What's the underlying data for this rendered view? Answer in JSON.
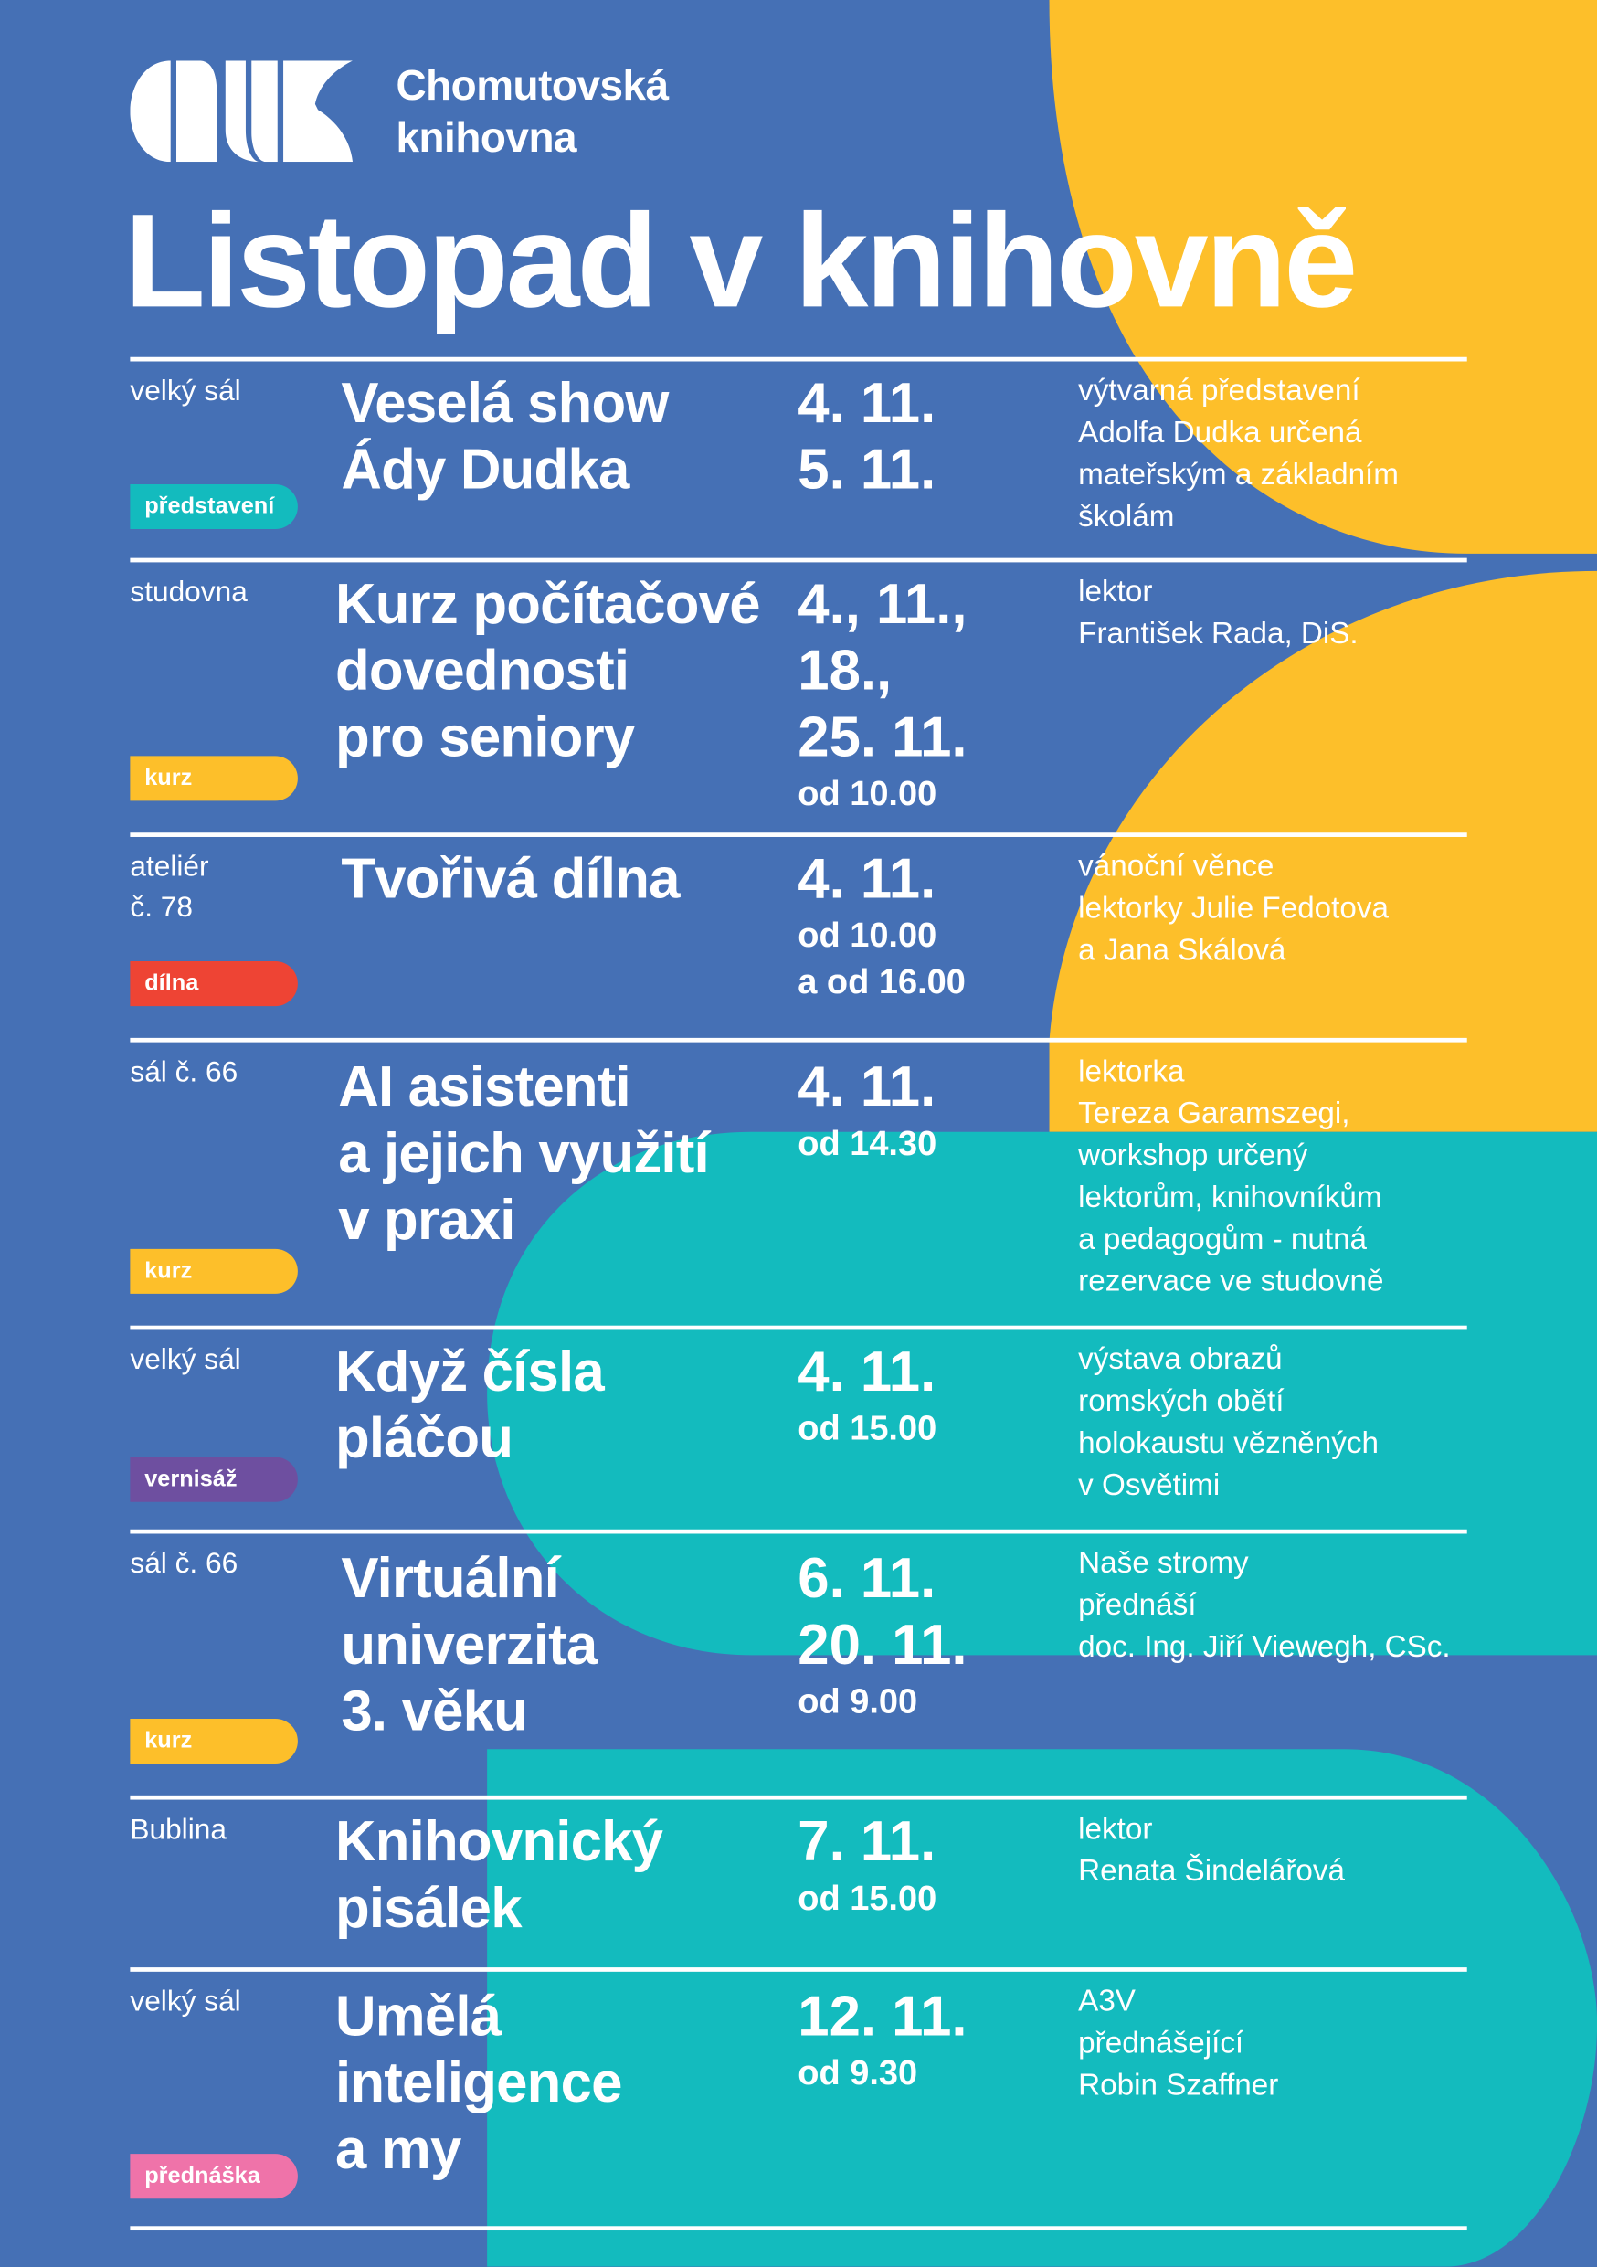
{
  "colors": {
    "background": "#4570B5",
    "yellow": "#FDBF2A",
    "teal": "#13BBBE",
    "text": "#FFFFFF"
  },
  "brand": {
    "logo": "CHK",
    "name_line1": "Chomutovská",
    "name_line2": "knihovna"
  },
  "title": "Listopad v knihovně",
  "events": [
    {
      "location": [
        "velký sál"
      ],
      "title": [
        "Veselá show",
        "Ády Dudka"
      ],
      "dates": [
        "4. 11.",
        "5. 11."
      ],
      "times": [],
      "description": [
        "výtvarná představení",
        "Adolfa Dudka určená",
        "mateřským a základním",
        "školám"
      ],
      "tag": "představení",
      "tag_color": "#13BBBE"
    },
    {
      "location": [
        "studovna"
      ],
      "title": [
        "Kurz počítačové",
        "dovednosti",
        "pro seniory"
      ],
      "dates": [
        "4., 11.,",
        "18.,",
        "25. 11."
      ],
      "times": [
        "od 10.00"
      ],
      "description": [
        "lektor",
        "František Rada, DiS."
      ],
      "tag": "kurz",
      "tag_color": "#FDBF2A"
    },
    {
      "location": [
        "ateliér",
        "č. 78"
      ],
      "title": [
        "Tvořivá dílna"
      ],
      "dates": [
        "4. 11."
      ],
      "times": [
        "od 10.00",
        "a od 16.00"
      ],
      "description": [
        "vánoční věnce",
        "lektorky Julie Fedotova",
        "a Jana Skálová"
      ],
      "tag": "dílna",
      "tag_color": "#EE4434"
    },
    {
      "location": [
        "sál č. 66"
      ],
      "title": [
        "AI asistenti",
        "a jejich využití",
        "v praxi"
      ],
      "dates": [
        "4. 11."
      ],
      "times": [
        "od 14.30"
      ],
      "description": [
        "lektorka",
        "Tereza Garamszegi,",
        "workshop určený",
        "lektorům, knihovníkům",
        "a pedagogům - nutná",
        "rezervace ve studovně"
      ],
      "tag": "kurz",
      "tag_color": "#FDBF2A"
    },
    {
      "location": [
        "velký sál"
      ],
      "title": [
        "Když čísla",
        "pláčou"
      ],
      "dates": [
        "4. 11."
      ],
      "times": [
        "od 15.00"
      ],
      "description": [
        "výstava obrazů",
        "romských obětí",
        "holokaustu vězněných",
        "v Osvětimi"
      ],
      "tag": "vernisáž",
      "tag_color": "#6E4FA0"
    },
    {
      "location": [
        "sál č. 66"
      ],
      "title": [
        "Virtuální",
        "univerzita",
        "3. věku"
      ],
      "dates": [
        "6. 11.",
        "20. 11."
      ],
      "times": [
        "od 9.00"
      ],
      "description": [
        "Naše stromy",
        "přednáší",
        "doc. Ing. Jiří Viewegh, CSc."
      ],
      "tag": "kurz",
      "tag_color": "#FDBF2A"
    },
    {
      "location": [
        "Bublina"
      ],
      "title": [
        "Knihovnický",
        "pisálek"
      ],
      "dates": [
        "7. 11."
      ],
      "times": [
        "od 15.00"
      ],
      "description": [
        "lektor",
        "Renata Šindelářová"
      ],
      "tag": null,
      "tag_color": null
    },
    {
      "location": [
        "velký sál"
      ],
      "title": [
        "Umělá",
        "inteligence",
        "a my"
      ],
      "dates": [
        "12. 11."
      ],
      "times": [
        "od 9.30"
      ],
      "description": [
        "A3V",
        "přednášející",
        "Robin Szaffner"
      ],
      "tag": "přednáška",
      "tag_color": "#EF73A9"
    }
  ]
}
